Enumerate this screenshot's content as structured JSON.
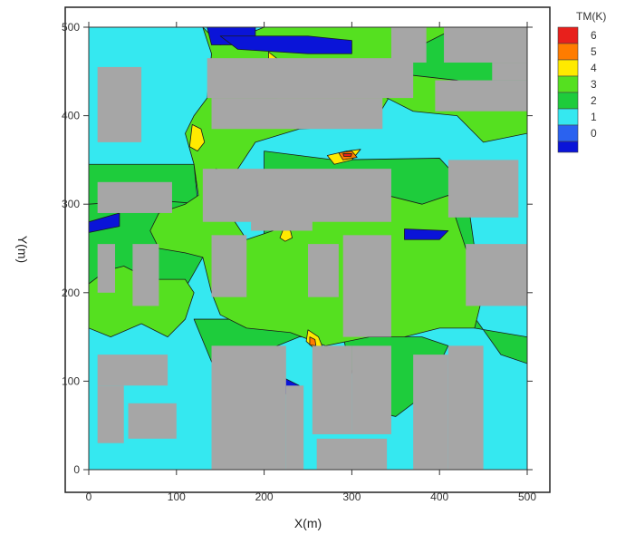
{
  "chart_data": {
    "type": "heatmap",
    "xlabel": "X(m)",
    "ylabel": "Y(m)",
    "xlim": [
      0,
      500
    ],
    "ylim": [
      0,
      500
    ],
    "xticks": [
      "0",
      "100",
      "200",
      "300",
      "400",
      "500"
    ],
    "yticks": [
      "0",
      "100",
      "200",
      "300",
      "400",
      "500"
    ],
    "legend": {
      "title": "TM(K)",
      "placement": "right",
      "levels": [
        {
          "label": "6",
          "value": 6,
          "color": "#e8201c"
        },
        {
          "label": "5",
          "value": 5,
          "color": "#ff7c00"
        },
        {
          "label": "4",
          "value": 4,
          "color": "#ffea00"
        },
        {
          "label": "3",
          "value": 3,
          "color": "#55e020"
        },
        {
          "label": "2",
          "value": 2,
          "color": "#1ecc3c"
        },
        {
          "label": "1",
          "value": 1,
          "color": "#35e8f0"
        },
        {
          "label": "0",
          "value": 0,
          "color": "#2a62f0"
        }
      ],
      "bottom_color": "#0a14d8"
    },
    "building_color": "#a6a6a6",
    "background_level": 1,
    "regions": [
      {
        "level": 2,
        "polys": [
          [
            [
              0,
              345
            ],
            [
              120,
              345
            ],
            [
              125,
              295
            ],
            [
              75,
              280
            ],
            [
              0,
              290
            ]
          ],
          [
            [
              20,
              170
            ],
            [
              75,
              175
            ],
            [
              110,
              205
            ],
            [
              130,
              240
            ],
            [
              130,
              300
            ],
            [
              70,
              305
            ],
            [
              0,
              300
            ],
            [
              0,
              180
            ]
          ],
          [
            [
              200,
              360
            ],
            [
              280,
              350
            ],
            [
              400,
              352
            ],
            [
              430,
              320
            ],
            [
              440,
              250
            ],
            [
              440,
              160
            ],
            [
              500,
              150
            ],
            [
              500,
              120
            ],
            [
              470,
              130
            ],
            [
              420,
              200
            ],
            [
              300,
              170
            ],
            [
              200,
              170
            ]
          ],
          [
            [
              330,
              500
            ],
            [
              480,
              500
            ],
            [
              500,
              470
            ],
            [
              500,
              420
            ],
            [
              460,
              410
            ],
            [
              370,
              420
            ],
            [
              330,
              440
            ]
          ],
          [
            [
              120,
              170
            ],
            [
              145,
              110
            ],
            [
              190,
              130
            ],
            [
              240,
              150
            ],
            [
              290,
              150
            ],
            [
              300,
              110
            ],
            [
              310,
              70
            ],
            [
              350,
              60
            ],
            [
              390,
              90
            ],
            [
              400,
              120
            ],
            [
              410,
              140
            ],
            [
              380,
              150
            ],
            [
              330,
              150
            ],
            [
              250,
              165
            ],
            [
              170,
              170
            ]
          ]
        ]
      },
      {
        "level": 3,
        "polys": [
          [
            [
              0,
              500
            ],
            [
              130,
              500
            ],
            [
              140,
              470
            ],
            [
              135,
              420
            ],
            [
              120,
              400
            ],
            [
              110,
              380
            ],
            [
              120,
              345
            ],
            [
              125,
              310
            ],
            [
              110,
              300
            ],
            [
              80,
              290
            ],
            [
              70,
              270
            ],
            [
              80,
              250
            ],
            [
              110,
              245
            ],
            [
              130,
              240
            ],
            [
              140,
              200
            ],
            [
              150,
              175
            ],
            [
              180,
              160
            ],
            [
              230,
              155
            ],
            [
              270,
              140
            ],
            [
              320,
              150
            ],
            [
              360,
              150
            ],
            [
              400,
              160
            ],
            [
              440,
              160
            ],
            [
              450,
              200
            ],
            [
              430,
              250
            ],
            [
              420,
              280
            ],
            [
              410,
              310
            ],
            [
              380,
              300
            ],
            [
              340,
              310
            ],
            [
              300,
              300
            ],
            [
              240,
              300
            ],
            [
              210,
              270
            ],
            [
              180,
              260
            ],
            [
              160,
              290
            ],
            [
              170,
              340
            ],
            [
              190,
              370
            ],
            [
              240,
              385
            ],
            [
              300,
              388
            ],
            [
              330,
              400
            ],
            [
              360,
              450
            ],
            [
              380,
              480
            ],
            [
              420,
              500
            ],
            [
              200,
              500
            ],
            [
              150,
              480
            ],
            [
              130,
              500
            ]
          ],
          [
            [
              330,
              450
            ],
            [
              420,
              440
            ],
            [
              480,
              420
            ],
            [
              500,
              410
            ],
            [
              500,
              380
            ],
            [
              450,
              370
            ],
            [
              420,
              400
            ],
            [
              370,
              405
            ],
            [
              340,
              420
            ]
          ],
          [
            [
              0,
              160
            ],
            [
              25,
              150
            ],
            [
              60,
              165
            ],
            [
              90,
              150
            ],
            [
              110,
              170
            ],
            [
              120,
              200
            ],
            [
              110,
              215
            ],
            [
              70,
              215
            ],
            [
              40,
              230
            ],
            [
              20,
              225
            ],
            [
              0,
              210
            ]
          ]
        ]
      },
      {
        "level": 4,
        "polys": [
          [
            [
              205,
              472
            ],
            [
              218,
              462
            ],
            [
              228,
              450
            ],
            [
              220,
              440
            ],
            [
              210,
              445
            ],
            [
              205,
              460
            ]
          ],
          [
            [
              118,
              390
            ],
            [
              128,
              385
            ],
            [
              132,
              370
            ],
            [
              124,
              360
            ],
            [
              115,
              365
            ]
          ],
          [
            [
              145,
              340
            ],
            [
              158,
              335
            ],
            [
              162,
              322
            ],
            [
              150,
              318
            ],
            [
              140,
              328
            ]
          ],
          [
            [
              272,
              355
            ],
            [
              294,
              360
            ],
            [
              310,
              362
            ],
            [
              300,
              350
            ],
            [
              280,
              345
            ]
          ],
          [
            [
              250,
              158
            ],
            [
              262,
              150
            ],
            [
              266,
              140
            ],
            [
              258,
              136
            ],
            [
              248,
              145
            ]
          ],
          [
            [
              222,
              272
            ],
            [
              230,
              270
            ],
            [
              232,
              262
            ],
            [
              224,
              258
            ],
            [
              218,
              262
            ]
          ]
        ]
      },
      {
        "level": 5,
        "polys": [
          [
            [
              285,
              358
            ],
            [
              300,
              360
            ],
            [
              306,
              353
            ],
            [
              290,
              350
            ]
          ],
          [
            [
              208,
              462
            ],
            [
              216,
              458
            ],
            [
              218,
              450
            ],
            [
              210,
              452
            ]
          ],
          [
            [
              252,
              150
            ],
            [
              258,
              147
            ],
            [
              259,
              140
            ],
            [
              252,
              141
            ]
          ]
        ]
      },
      {
        "level": 6,
        "polys": [
          [
            [
              290,
              357
            ],
            [
              300,
              357
            ],
            [
              299,
              354
            ],
            [
              291,
              354
            ]
          ]
        ]
      },
      {
        "level": -1,
        "polys": [
          [
            [
              135,
              500
            ],
            [
              190,
              500
            ],
            [
              190,
              480
            ],
            [
              140,
              480
            ]
          ],
          [
            [
              150,
              490
            ],
            [
              250,
              490
            ],
            [
              300,
              485
            ],
            [
              300,
              470
            ],
            [
              250,
              470
            ],
            [
              170,
              475
            ]
          ],
          [
            [
              360,
              260
            ],
            [
              400,
              260
            ],
            [
              410,
              270
            ],
            [
              360,
              272
            ]
          ],
          [
            [
              0,
              280
            ],
            [
              35,
              290
            ],
            [
              35,
              275
            ],
            [
              0,
              268
            ]
          ],
          [
            [
              165,
              95
            ],
            [
              230,
              85
            ],
            [
              240,
              95
            ],
            [
              220,
              105
            ],
            [
              170,
              100
            ]
          ]
        ]
      }
    ],
    "buildings": [
      [
        10,
        60,
        370,
        455
      ],
      [
        10,
        95,
        290,
        325
      ],
      [
        10,
        30,
        200,
        255
      ],
      [
        50,
        80,
        185,
        255
      ],
      [
        135,
        370,
        420,
        465
      ],
      [
        395,
        500,
        405,
        440
      ],
      [
        140,
        335,
        385,
        420
      ],
      [
        215,
        335,
        420,
        450
      ],
      [
        345,
        385,
        460,
        500
      ],
      [
        405,
        500,
        460,
        500
      ],
      [
        460,
        500,
        440,
        460
      ],
      [
        130,
        345,
        280,
        340
      ],
      [
        410,
        490,
        285,
        350
      ],
      [
        140,
        180,
        195,
        265
      ],
      [
        185,
        255,
        270,
        300
      ],
      [
        250,
        285,
        195,
        255
      ],
      [
        290,
        345,
        150,
        265
      ],
      [
        430,
        500,
        185,
        255
      ],
      [
        10,
        90,
        95,
        130
      ],
      [
        10,
        40,
        30,
        95
      ],
      [
        45,
        100,
        35,
        75
      ],
      [
        140,
        225,
        0,
        140
      ],
      [
        225,
        245,
        0,
        95
      ],
      [
        255,
        300,
        40,
        140
      ],
      [
        300,
        345,
        40,
        140
      ],
      [
        260,
        340,
        0,
        35
      ],
      [
        370,
        410,
        0,
        130
      ],
      [
        410,
        450,
        0,
        140
      ]
    ]
  }
}
